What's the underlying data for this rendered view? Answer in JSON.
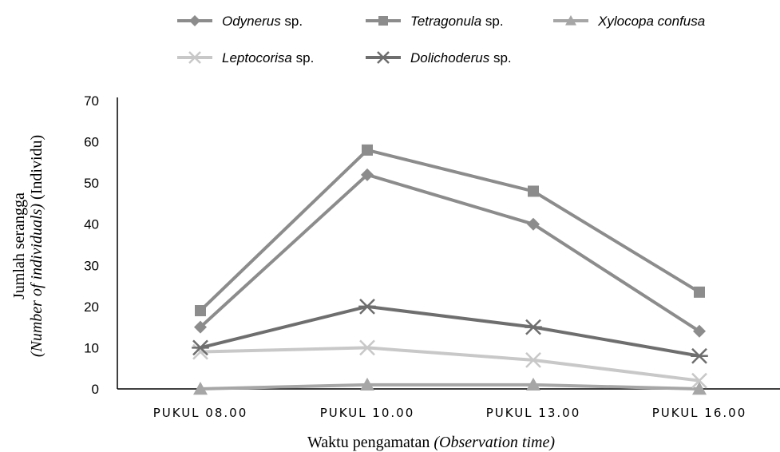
{
  "chart_data": {
    "type": "line",
    "categories": [
      "PUKUL 08.00",
      "PUKUL 10.00",
      "PUKUL 13.00",
      "PUKUL 16.00"
    ],
    "ylim": [
      0,
      70
    ],
    "yticks": [
      0,
      10,
      20,
      30,
      40,
      50,
      60,
      70
    ],
    "grid": false,
    "legend_position": "top",
    "xlabel": {
      "main": "Waktu pengamatan ",
      "italic": "(Observation time)"
    },
    "ylabel": {
      "line1": "Jumlah serangga",
      "line2_italic": "(Number of individuals)",
      "line2_rest": " (Individu)"
    },
    "series": [
      {
        "name_italic": "Odynerus",
        "name_rest": " sp.",
        "marker": "diamond",
        "color": "#8c8c8c",
        "values": [
          15,
          52,
          40,
          14
        ]
      },
      {
        "name_italic": "Tetragonula",
        "name_rest": " sp.",
        "marker": "square",
        "color": "#8c8c8c",
        "values": [
          19,
          58,
          48,
          23.5
        ]
      },
      {
        "name_italic": "Xylocopa confusa",
        "name_rest": "",
        "marker": "triangle",
        "color": "#a6a6a6",
        "values": [
          0,
          1,
          1,
          0
        ]
      },
      {
        "name_italic": "Leptocorisa",
        "name_rest": " sp.",
        "marker": "x",
        "color": "#c8c8c8",
        "values": [
          9,
          10,
          7,
          2
        ]
      },
      {
        "name_italic": "Dolichoderus",
        "name_rest": " sp.",
        "marker": "asterisk",
        "color": "#6e6e6e",
        "values": [
          10,
          20,
          15,
          8
        ]
      }
    ]
  }
}
